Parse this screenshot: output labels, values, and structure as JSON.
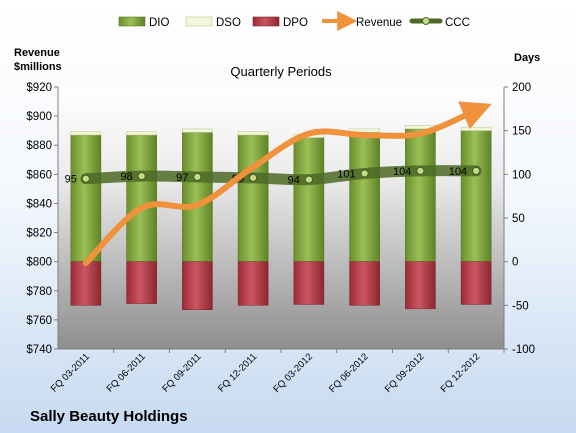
{
  "chart_data": {
    "type": "bar",
    "title": "Quarterly Periods",
    "company": "Sally Beauty Holdings",
    "left_axis_title_line1": "Revenue",
    "left_axis_title_line2": "$millions",
    "right_axis_title": "Days",
    "left_ylim": [
      740,
      920
    ],
    "left_ticks": [
      "$740",
      "$760",
      "$780",
      "$800",
      "$820",
      "$840",
      "$860",
      "$880",
      "$900",
      "$920"
    ],
    "right_ylim": [
      -100,
      200
    ],
    "right_ticks": [
      "-100",
      "-50",
      "0",
      "50",
      "100",
      "150",
      "200"
    ],
    "grid": false,
    "legend_position": "top",
    "categories": [
      "FQ 03-2011",
      "FQ 06-2011",
      "FQ 09-2011",
      "FQ 12-2011",
      "FQ 03-2012",
      "FQ 06-2012",
      "FQ 09-2012",
      "FQ 12-2012"
    ],
    "series": [
      {
        "name": "DIO",
        "type": "bar",
        "axis": "right",
        "color": "#7ea33a",
        "values": [
          145,
          145,
          148,
          145,
          142,
          148,
          152,
          150
        ]
      },
      {
        "name": "DSO",
        "type": "bar",
        "axis": "right",
        "color": "#f2f7dc",
        "values": [
          4,
          4,
          4,
          4,
          4,
          4,
          4,
          4
        ]
      },
      {
        "name": "DPO",
        "type": "bar",
        "axis": "right",
        "color": "#b83b47",
        "values": [
          -50,
          -48,
          -55,
          -50,
          -49,
          -50,
          -54,
          -49
        ]
      },
      {
        "name": "Revenue",
        "type": "line",
        "axis": "left",
        "color": "#f0913b",
        "values": [
          799,
          837,
          839,
          865,
          888,
          887,
          888,
          904
        ]
      },
      {
        "name": "CCC",
        "type": "line",
        "axis": "right",
        "color": "#4d6a26",
        "values": [
          95,
          98,
          97,
          96,
          94,
          101,
          104,
          104
        ]
      }
    ]
  }
}
